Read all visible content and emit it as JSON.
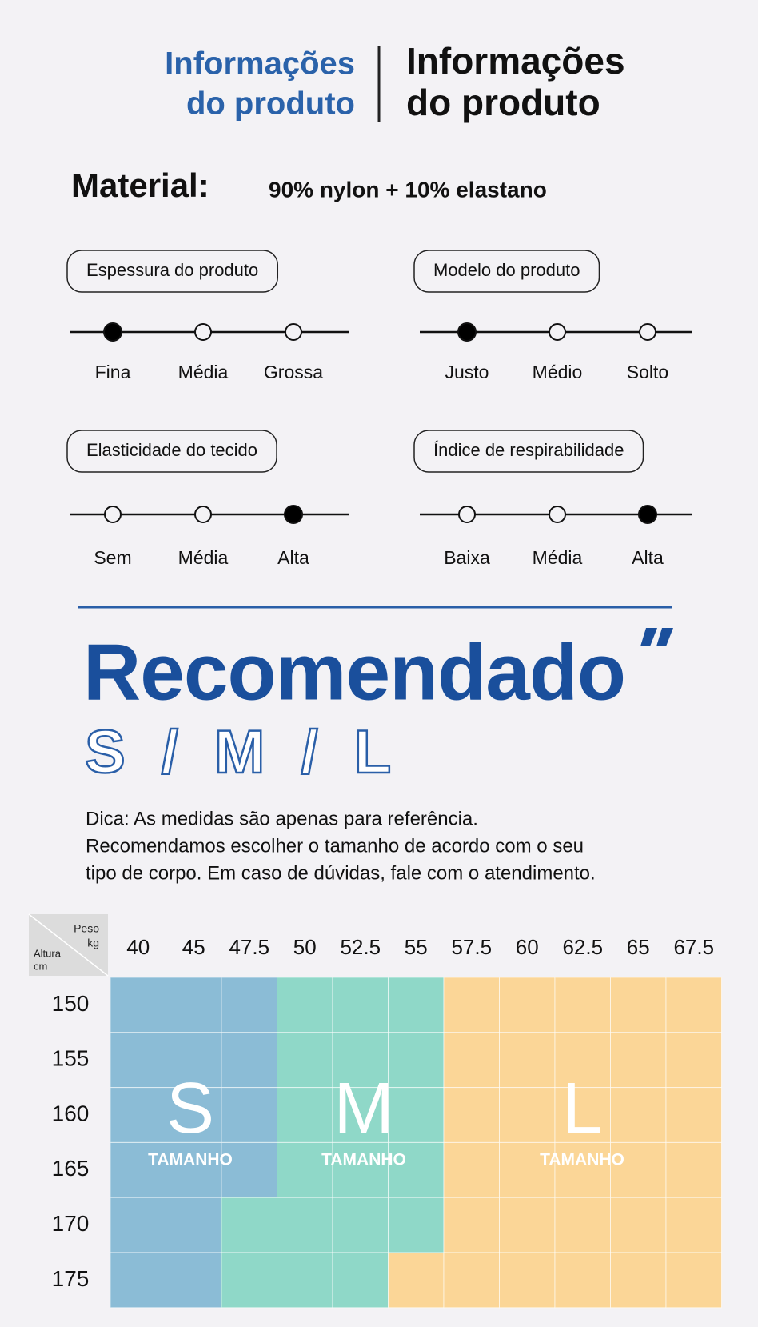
{
  "header": {
    "title_blue": [
      "Informações",
      "do produto"
    ],
    "title_black": [
      "Informações",
      "do produto"
    ]
  },
  "material": {
    "label": "Material:",
    "value": "90% nylon + 10% elastano"
  },
  "scales": [
    {
      "label": "Espessura do produto",
      "options": [
        "Fina",
        "Média",
        "Grossa"
      ],
      "selected": 0
    },
    {
      "label": "Modelo do produto",
      "options": [
        "Justo",
        "Médio",
        "Solto"
      ],
      "selected": 0
    },
    {
      "label": "Elasticidade do tecido",
      "options": [
        "Sem",
        "Média",
        "Alta"
      ],
      "selected": 2
    },
    {
      "label": "Índice de respirabilidade",
      "options": [
        "Baixa",
        "Média",
        "Alta"
      ],
      "selected": 2
    }
  ],
  "recommendation": {
    "title": "Recomendado",
    "sizes_text": "S / M / L",
    "tip": [
      "Dica: As medidas são apenas para referência.",
      "Recomendamos escolher o tamanho de acordo com o seu",
      "tipo de corpo. Em caso de dúvidas, fale com o atendimento."
    ]
  },
  "size_chart": {
    "weight_label": [
      "Peso",
      "kg"
    ],
    "height_label": [
      "Altura",
      "cm"
    ],
    "weights": [
      40,
      45,
      47.5,
      50,
      52.5,
      55,
      57.5,
      60,
      62.5,
      65,
      67.5
    ],
    "heights": [
      150,
      155,
      160,
      165,
      170,
      175
    ],
    "sizes": [
      {
        "letter": "S",
        "label": "TAMANHO",
        "color": "#8bbcd6"
      },
      {
        "letter": "M",
        "label": "TAMANHO",
        "color": "#8fd8c8"
      },
      {
        "letter": "L",
        "label": "TAMANHO",
        "color": "#fbd697"
      }
    ],
    "cells": [
      [
        "S",
        "S",
        "S",
        "M",
        "M",
        "M",
        "L",
        "L",
        "L",
        "L",
        "L"
      ],
      [
        "S",
        "S",
        "S",
        "M",
        "M",
        "M",
        "L",
        "L",
        "L",
        "L",
        "L"
      ],
      [
        "S",
        "S",
        "S",
        "M",
        "M",
        "M",
        "L",
        "L",
        "L",
        "L",
        "L"
      ],
      [
        "S",
        "S",
        "S",
        "M",
        "M",
        "M",
        "L",
        "L",
        "L",
        "L",
        "L"
      ],
      [
        "S",
        "S",
        "M",
        "M",
        "M",
        "M",
        "L",
        "L",
        "L",
        "L",
        "L"
      ],
      [
        "S",
        "S",
        "M",
        "M",
        "M",
        "L",
        "L",
        "L",
        "L",
        "L",
        "L"
      ]
    ]
  }
}
